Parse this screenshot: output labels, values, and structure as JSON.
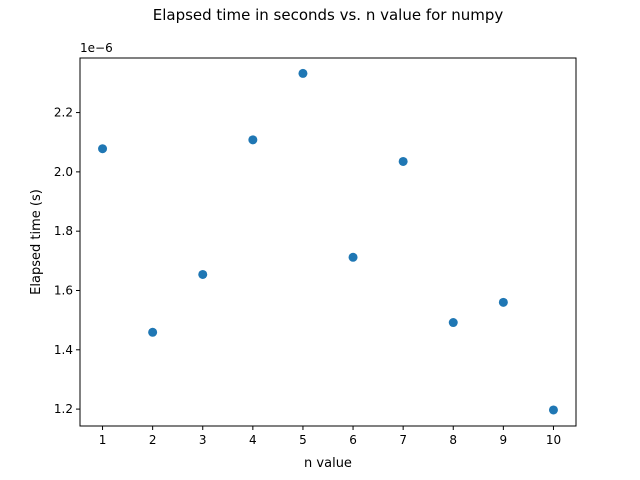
{
  "chart_data": {
    "type": "scatter",
    "title": "Elapsed time in seconds vs. n value for numpy",
    "xlabel": "n value",
    "ylabel": "Elapsed time (s)",
    "y_offset_label": "1e−6",
    "xlim": [
      0.55,
      10.45
    ],
    "ylim": [
      1.143,
      2.384
    ],
    "x_ticks": [
      1,
      2,
      3,
      4,
      5,
      6,
      7,
      8,
      9,
      10
    ],
    "x_tick_labels": [
      "1",
      "2",
      "3",
      "4",
      "5",
      "6",
      "7",
      "8",
      "9",
      "10"
    ],
    "y_ticks": [
      1.2,
      1.4,
      1.6,
      1.8,
      2.0,
      2.2
    ],
    "y_tick_labels": [
      "1.2",
      "1.4",
      "1.6",
      "1.8",
      "2.0",
      "2.2"
    ],
    "grid": false,
    "series": [
      {
        "color": "#1f77b4",
        "x": [
          1,
          2,
          3,
          4,
          5,
          6,
          7,
          8,
          9,
          10
        ],
        "y": [
          2.078,
          1.459,
          1.654,
          2.108,
          2.332,
          1.712,
          2.035,
          1.492,
          1.56,
          1.197
        ]
      }
    ]
  }
}
